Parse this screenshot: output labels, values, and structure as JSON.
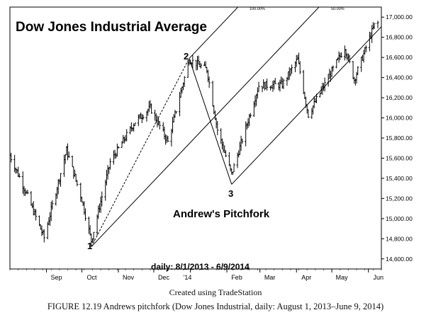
{
  "chart_data": {
    "type": "ohlc",
    "title": "Dow Jones Industrial Average",
    "subtitle": "Andrew's Pitchfork",
    "date_range_label": "daily: 8/1/2013 - 6/9/2014",
    "x_tick_labels": [
      "Sep",
      "Oct",
      "Nov",
      "Dec",
      "'14",
      "Feb",
      "Mar",
      "Apr",
      "May",
      "Jun"
    ],
    "y_tick_labels": [
      "14,600.00",
      "14,800.00",
      "15,000.00",
      "15,200.00",
      "15,400.00",
      "15,600.00",
      "15,800.00",
      "16,000.00",
      "16,200.00",
      "16,400.00",
      "16,600.00",
      "16,800.00",
      "17,000.00"
    ],
    "ylim": [
      14500,
      17100
    ],
    "pivot_labels": [
      "1",
      "2",
      "3"
    ],
    "pivots": [
      {
        "label": "1",
        "date": "2013-10-09",
        "value": 14720
      },
      {
        "label": "2",
        "date": "2013-12-31",
        "value": 16590
      },
      {
        "label": "3",
        "date": "2014-02-05",
        "value": 15340
      }
    ],
    "line_labels": [
      "100.00%",
      "50.00%"
    ],
    "close_series_approx": [
      {
        "date": "2013-08-01",
        "close": 15630
      },
      {
        "date": "2013-08-15",
        "close": 15250
      },
      {
        "date": "2013-08-30",
        "close": 14810
      },
      {
        "date": "2013-09-18",
        "close": 15680
      },
      {
        "date": "2013-10-01",
        "close": 15190
      },
      {
        "date": "2013-10-09",
        "close": 14780
      },
      {
        "date": "2013-10-25",
        "close": 15560
      },
      {
        "date": "2013-11-15",
        "close": 15960
      },
      {
        "date": "2013-11-28",
        "close": 16100
      },
      {
        "date": "2013-12-13",
        "close": 15760
      },
      {
        "date": "2013-12-31",
        "close": 16580
      },
      {
        "date": "2014-01-15",
        "close": 16480
      },
      {
        "date": "2014-01-24",
        "close": 15880
      },
      {
        "date": "2014-02-05",
        "close": 15440
      },
      {
        "date": "2014-02-28",
        "close": 16320
      },
      {
        "date": "2014-03-20",
        "close": 16330
      },
      {
        "date": "2014-04-02",
        "close": 16580
      },
      {
        "date": "2014-04-11",
        "close": 16030
      },
      {
        "date": "2014-05-12",
        "close": 16700
      },
      {
        "date": "2014-05-20",
        "close": 16380
      },
      {
        "date": "2014-06-06",
        "close": 16920
      },
      {
        "date": "2014-06-09",
        "close": 16940
      }
    ]
  },
  "credit": "Created using TradeStation",
  "figure_caption": "FIGURE 12.19 Andrews pitchfork (Dow Jones Industrial, daily: August 1, 2013–June 9, 2014)"
}
